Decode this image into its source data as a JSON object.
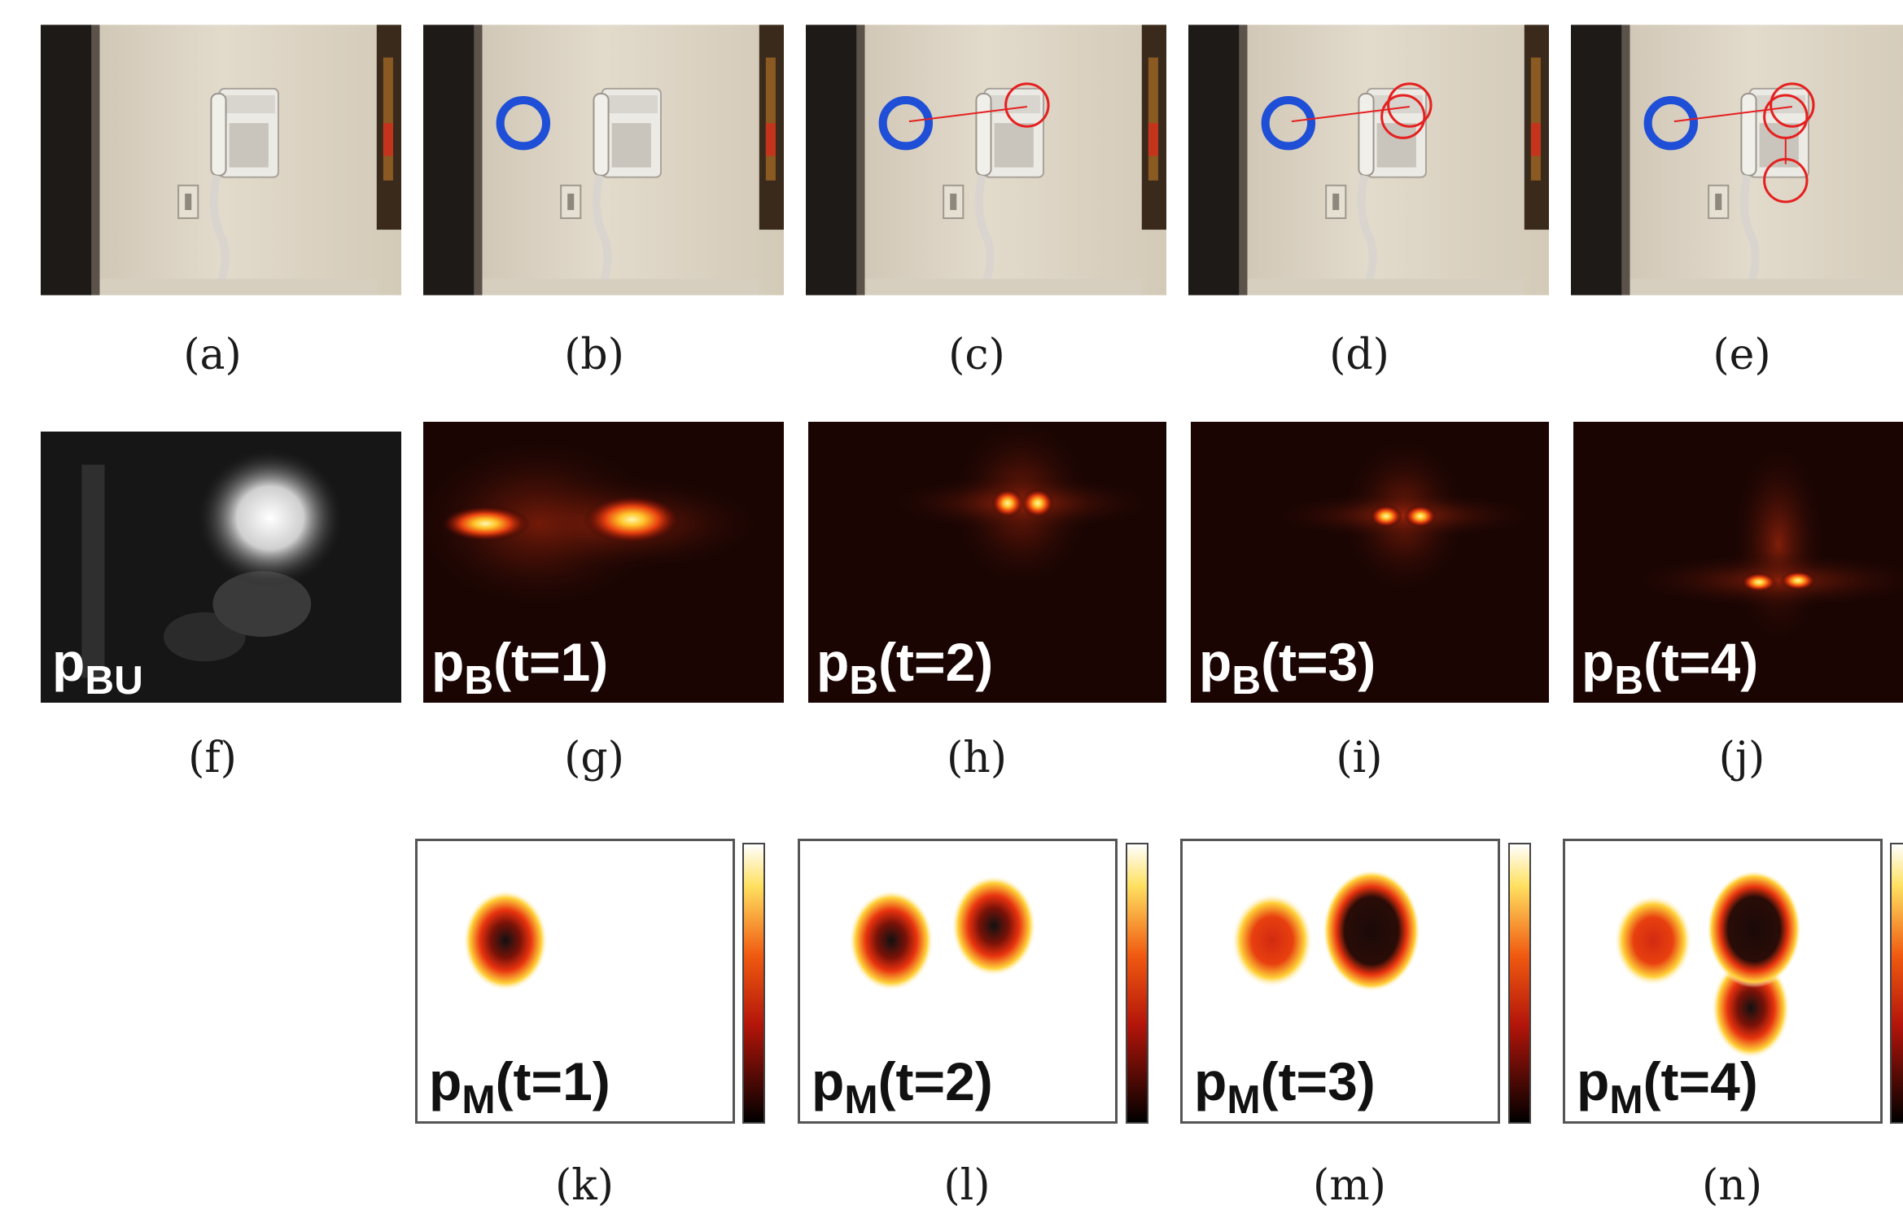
{
  "captions": {
    "a": "(a)",
    "b": "(b)",
    "c": "(c)",
    "d": "(d)",
    "e": "(e)",
    "f": "(f)",
    "g": "(g)",
    "h": "(h)",
    "i": "(i)",
    "j": "(j)",
    "k": "(k)",
    "l": "(l)",
    "m": "(m)",
    "n": "(n)"
  },
  "labels": {
    "f": {
      "base": "p",
      "sub": "BU",
      "rest": ""
    },
    "g": {
      "base": "p",
      "sub": "B",
      "rest": "(t=1)"
    },
    "h": {
      "base": "p",
      "sub": "B",
      "rest": "(t=2)"
    },
    "i": {
      "base": "p",
      "sub": "B",
      "rest": "(t=3)"
    },
    "j": {
      "base": "p",
      "sub": "B",
      "rest": "(t=4)"
    },
    "k": {
      "base": "p",
      "sub": "M",
      "rest": "(t=1)"
    },
    "l": {
      "base": "p",
      "sub": "M",
      "rest": "(t=2)"
    },
    "m": {
      "base": "p",
      "sub": "M",
      "rest": "(t=3)"
    },
    "n": {
      "base": "p",
      "sub": "M",
      "rest": "(t=4)"
    }
  },
  "colors": {
    "fixation_marker": "#1f4fd6",
    "gaze_circle": "#e52020",
    "heatmap_hot": "#ffe46b",
    "heatmap_mid": "#e8400f",
    "heatmap_bg": "#1a0503"
  }
}
